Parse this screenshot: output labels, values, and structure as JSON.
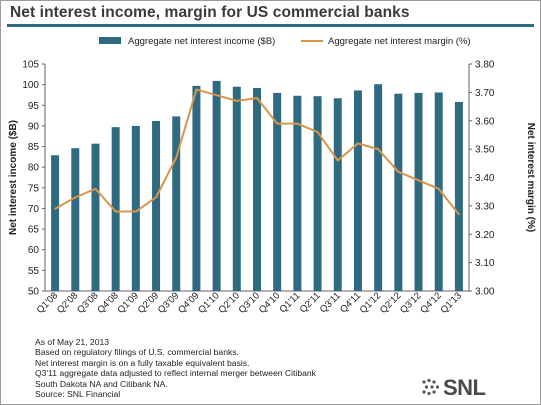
{
  "title": "Net interest income, margin for US commercial banks",
  "colors": {
    "bar": "#2e6b80",
    "line": "#d9964a",
    "rule": "#2e6b80"
  },
  "chart_data": {
    "type": "bar",
    "categories": [
      "Q1'08",
      "Q2'08",
      "Q3'08",
      "Q4'08",
      "Q1'09",
      "Q2'09",
      "Q3'09",
      "Q4'09",
      "Q1'10",
      "Q2'10",
      "Q3'10",
      "Q4'10",
      "Q1'11",
      "Q2'11",
      "Q3'11",
      "Q4'11",
      "Q1'12",
      "Q2'12",
      "Q3'12",
      "Q4'12",
      "Q1'13"
    ],
    "series": [
      {
        "name": "Aggregate net interest income ($B)",
        "type": "bar",
        "axis": "left",
        "values": [
          82.9,
          84.6,
          85.7,
          89.7,
          90.0,
          91.2,
          92.3,
          99.7,
          100.9,
          99.5,
          99.2,
          98.0,
          97.3,
          97.2,
          96.7,
          98.6,
          100.1,
          97.8,
          98.0,
          98.1,
          95.8
        ]
      },
      {
        "name": "Aggregate net interest margin (%)",
        "type": "line",
        "axis": "right",
        "values": [
          3.29,
          3.33,
          3.36,
          3.28,
          3.28,
          3.33,
          3.47,
          3.71,
          3.69,
          3.67,
          3.68,
          3.59,
          3.59,
          3.56,
          3.46,
          3.52,
          3.5,
          3.42,
          3.39,
          3.36,
          3.27
        ]
      }
    ],
    "ylabel": "Net interest income ($B)",
    "y2label": "Net interest margin (%)",
    "ylim": [
      50,
      105
    ],
    "y_ticks": [
      "50",
      "55",
      "60",
      "65",
      "70",
      "75",
      "80",
      "85",
      "90",
      "95",
      "100",
      "105"
    ],
    "y2lim": [
      3.0,
      3.8
    ],
    "y2_ticks": [
      "3.00",
      "3.10",
      "3.20",
      "3.30",
      "3.40",
      "3.50",
      "3.60",
      "3.70",
      "3.80"
    ],
    "grid": false,
    "legend": "top"
  },
  "footnotes": [
    "As of May 21, 2013",
    "Based on regulatory filings of U.S. commercial banks.",
    "Net interest margin is on a fully taxable equivalent basis.",
    "Q3'11 aggregate data adjusted to reflect internal merger between Citibank",
    "South Dakota NA and Citibank NA.",
    "Source: SNL Financial"
  ],
  "logo": {
    "text": "SNL"
  }
}
